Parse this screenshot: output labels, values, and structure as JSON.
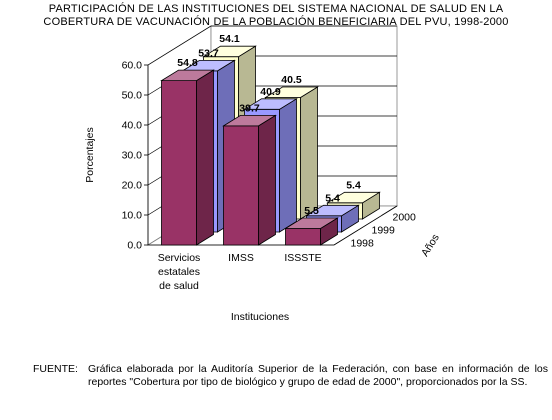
{
  "chart_data": {
    "type": "bar",
    "title_lines": [
      "PARTICIPACIÓN DE LAS INSTITUCIONES DEL SISTEMA NACIONAL DE SALUD EN LA",
      "COBERTURA DE VACUNACIÓN DE LA POBLACIÓN BENEFICIARIA DEL PVU, 1998-2000"
    ],
    "categories": [
      "Servicios estatales de salud",
      "IMSS",
      "ISSSTE"
    ],
    "category_label_lines": [
      [
        "Servicios",
        "estatales",
        "de salud"
      ],
      [
        "IMSS"
      ],
      [
        "ISSSTE"
      ]
    ],
    "series": [
      {
        "name": "1998",
        "values": [
          54.8,
          39.7,
          5.5
        ],
        "color": "#993366"
      },
      {
        "name": "1999",
        "values": [
          53.7,
          40.9,
          5.4
        ],
        "color": "#9999ff"
      },
      {
        "name": "2000",
        "values": [
          54.1,
          40.5,
          5.4
        ],
        "color": "#ffffcc"
      }
    ],
    "data_labels": [
      [
        "54.8",
        "39.7",
        "5.5"
      ],
      [
        "53.7",
        "40.9",
        "5.4"
      ],
      [
        "54.1",
        "40.5",
        "5.4"
      ]
    ],
    "ylabel": "Porcentajes",
    "xlabel": "Instituciones",
    "depth_label": "Años",
    "y_ticks": [
      "0.0",
      "10.0",
      "20.0",
      "30.0",
      "40.0",
      "50.0",
      "60.0"
    ],
    "ylim": [
      0,
      60
    ],
    "grid": true,
    "style": "3d-column"
  },
  "source": {
    "label": "FUENTE:",
    "text": "Gráfica elaborada por la Auditoría Superior de la Federación, con base en información de los reportes \"Cobertura por tipo de biológico y grupo de edad de 2000\", proporcionados por la SS."
  }
}
